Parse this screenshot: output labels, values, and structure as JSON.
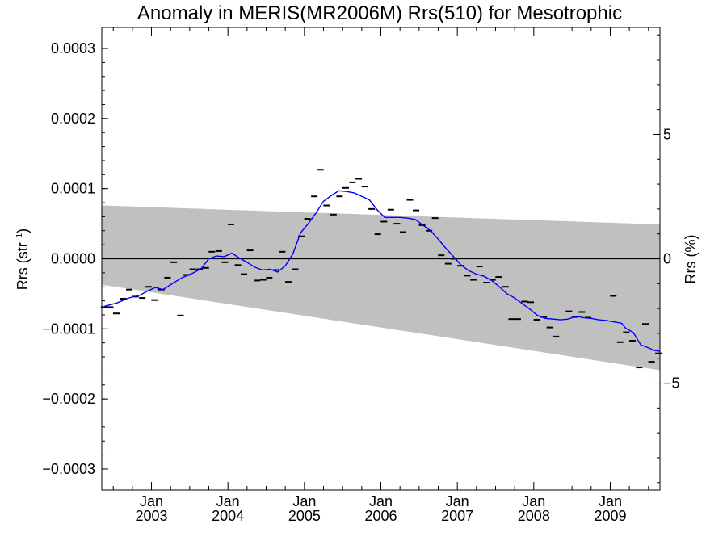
{
  "chart_data": {
    "type": "line",
    "title": "Anomaly in MERIS(MR2006M) Rrs(510) for Mesotrophic",
    "ylabel_main": "Rrs (str",
    "ylabel_sup": "−1",
    "ylabel_close": ")",
    "y2label": "Rrs (%)",
    "xlim": [
      2002.35,
      2009.65
    ],
    "ylim": [
      -0.00033,
      0.00033
    ],
    "y2lim": [
      -9.3,
      9.3
    ],
    "y_ticks": [
      {
        "value": 0.0003,
        "label": "0.0003"
      },
      {
        "value": 0.0002,
        "label": "0.0002"
      },
      {
        "value": 0.0001,
        "label": "0.0001"
      },
      {
        "value": 0.0,
        "label": "0.0000"
      },
      {
        "value": -0.0001,
        "label": "−0.0001"
      },
      {
        "value": -0.0002,
        "label": "−0.0002"
      },
      {
        "value": -0.0003,
        "label": "−0.0003"
      }
    ],
    "y2_ticks": [
      {
        "value": 5,
        "label": "5"
      },
      {
        "value": 0,
        "label": "0"
      },
      {
        "value": -5,
        "label": "−5"
      }
    ],
    "x_ticks": [
      {
        "value": 2003,
        "label1": "Jan",
        "label2": "2003"
      },
      {
        "value": 2004,
        "label1": "Jan",
        "label2": "2004"
      },
      {
        "value": 2005,
        "label1": "Jan",
        "label2": "2005"
      },
      {
        "value": 2006,
        "label1": "Jan",
        "label2": "2006"
      },
      {
        "value": 2007,
        "label1": "Jan",
        "label2": "2007"
      },
      {
        "value": 2008,
        "label1": "Jan",
        "label2": "2008"
      },
      {
        "value": 2009,
        "label1": "Jan",
        "label2": "2009"
      }
    ],
    "colors": {
      "band": "#c0c0c0",
      "line": "#0000ff",
      "points": "#000000",
      "zero_line": "#000000"
    },
    "band": {
      "upper": [
        [
          2002.35,
          7.6e-05
        ],
        [
          2009.65,
          4.9e-05
        ]
      ],
      "lower": [
        [
          2002.35,
          -3.7e-05
        ],
        [
          2009.65,
          -0.000159
        ]
      ]
    },
    "monthly_points": [
      [
        2002.38,
        -6.9e-05
      ],
      [
        2002.46,
        -6.9e-05
      ],
      [
        2002.54,
        -7.8e-05
      ],
      [
        2002.63,
        -5.7e-05
      ],
      [
        2002.71,
        -4.4e-05
      ],
      [
        2002.79,
        -5.4e-05
      ],
      [
        2002.88,
        -5.6e-05
      ],
      [
        2002.96,
        -4e-05
      ],
      [
        2003.04,
        -5.9e-05
      ],
      [
        2003.13,
        -4.4e-05
      ],
      [
        2003.21,
        -2.7e-05
      ],
      [
        2003.29,
        -5e-06
      ],
      [
        2003.38,
        -8.1e-05
      ],
      [
        2003.46,
        -2.3e-05
      ],
      [
        2003.54,
        -1.5e-05
      ],
      [
        2003.63,
        -1.5e-05
      ],
      [
        2003.71,
        -1.3e-05
      ],
      [
        2003.79,
        1e-05
      ],
      [
        2003.88,
        1.1e-05
      ],
      [
        2003.96,
        -5e-06
      ],
      [
        2004.04,
        4.9e-05
      ],
      [
        2004.13,
        -9e-06
      ],
      [
        2004.21,
        -2.2e-05
      ],
      [
        2004.29,
        1.2e-05
      ],
      [
        2004.38,
        -3.1e-05
      ],
      [
        2004.46,
        -3e-05
      ],
      [
        2004.54,
        -2.7e-05
      ],
      [
        2004.63,
        -1.6e-05
      ],
      [
        2004.71,
        1e-05
      ],
      [
        2004.79,
        -3.3e-05
      ],
      [
        2004.88,
        -1.5e-05
      ],
      [
        2004.96,
        3.2e-05
      ],
      [
        2005.04,
        5.7e-05
      ],
      [
        2005.13,
        8.9e-05
      ],
      [
        2005.21,
        0.000127
      ],
      [
        2005.29,
        7.6e-05
      ],
      [
        2005.38,
        6.3e-05
      ],
      [
        2005.46,
        8.9e-05
      ],
      [
        2005.54,
        0.000101
      ],
      [
        2005.63,
        0.000109
      ],
      [
        2005.71,
        0.000114
      ],
      [
        2005.79,
        0.000103
      ],
      [
        2005.88,
        7.1e-05
      ],
      [
        2005.96,
        3.5e-05
      ],
      [
        2006.04,
        5.3e-05
      ],
      [
        2006.13,
        7e-05
      ],
      [
        2006.21,
        5e-05
      ],
      [
        2006.29,
        3.8e-05
      ],
      [
        2006.38,
        8.4e-05
      ],
      [
        2006.46,
        6.9e-05
      ],
      [
        2006.54,
        4.8e-05
      ],
      [
        2006.63,
        4e-05
      ],
      [
        2006.71,
        5.8e-05
      ],
      [
        2006.79,
        5e-06
      ],
      [
        2006.88,
        -7e-06
      ],
      [
        2006.96,
        0.0
      ],
      [
        2007.04,
        -1e-05
      ],
      [
        2007.13,
        -2.4e-05
      ],
      [
        2007.21,
        -3e-05
      ],
      [
        2007.29,
        -1.1e-05
      ],
      [
        2007.38,
        -3.4e-05
      ],
      [
        2007.46,
        -3e-05
      ],
      [
        2007.54,
        -2.6e-05
      ],
      [
        2007.63,
        -4e-05
      ],
      [
        2007.71,
        -8.6e-05
      ],
      [
        2007.79,
        -8.6e-05
      ],
      [
        2007.88,
        -6.1e-05
      ],
      [
        2007.96,
        -6.2e-05
      ],
      [
        2008.04,
        -8.7e-05
      ],
      [
        2008.13,
        -8.3e-05
      ],
      [
        2008.21,
        -9.8e-05
      ],
      [
        2008.29,
        -0.000111
      ],
      [
        2008.46,
        -7.5e-05
      ],
      [
        2008.54,
        -8.3e-05
      ],
      [
        2008.63,
        -7.6e-05
      ],
      [
        2008.71,
        -8.4e-05
      ],
      [
        2009.04,
        -5.3e-05
      ],
      [
        2009.13,
        -0.000119
      ],
      [
        2009.21,
        -0.000105
      ],
      [
        2009.29,
        -0.000117
      ],
      [
        2009.38,
        -0.000155
      ],
      [
        2009.46,
        -9.3e-05
      ],
      [
        2009.54,
        -0.000147
      ],
      [
        2009.63,
        -0.000135
      ]
    ],
    "running_mean": [
      [
        2002.38,
        -6.8e-05
      ],
      [
        2002.55,
        -6.3e-05
      ],
      [
        2002.7,
        -5.6e-05
      ],
      [
        2002.85,
        -5.2e-05
      ],
      [
        2002.95,
        -4.6e-05
      ],
      [
        2003.05,
        -4.1e-05
      ],
      [
        2003.15,
        -4.4e-05
      ],
      [
        2003.25,
        -3.7e-05
      ],
      [
        2003.4,
        -2.7e-05
      ],
      [
        2003.55,
        -2e-05
      ],
      [
        2003.65,
        -1.4e-05
      ],
      [
        2003.75,
        0.0
      ],
      [
        2003.85,
        4e-06
      ],
      [
        2003.95,
        3e-06
      ],
      [
        2004.05,
        8e-06
      ],
      [
        2004.15,
        1e-06
      ],
      [
        2004.25,
        -5e-06
      ],
      [
        2004.35,
        -1.2e-05
      ],
      [
        2004.45,
        -1.6e-05
      ],
      [
        2004.55,
        -1.5e-05
      ],
      [
        2004.65,
        -1.9e-05
      ],
      [
        2004.75,
        -1e-05
      ],
      [
        2004.85,
        7e-06
      ],
      [
        2004.95,
        3.7e-05
      ],
      [
        2005.05,
        5e-05
      ],
      [
        2005.15,
        6.5e-05
      ],
      [
        2005.25,
        8.2e-05
      ],
      [
        2005.35,
        9e-05
      ],
      [
        2005.45,
        9.7e-05
      ],
      [
        2005.55,
        9.6e-05
      ],
      [
        2005.65,
        9.4e-05
      ],
      [
        2005.75,
        8.9e-05
      ],
      [
        2005.85,
        8.4e-05
      ],
      [
        2005.95,
        7e-05
      ],
      [
        2006.05,
        5.9e-05
      ],
      [
        2006.15,
        5.9e-05
      ],
      [
        2006.25,
        5.9e-05
      ],
      [
        2006.35,
        5.8e-05
      ],
      [
        2006.45,
        5.6e-05
      ],
      [
        2006.55,
        4.8e-05
      ],
      [
        2006.65,
        4e-05
      ],
      [
        2006.75,
        2.8e-05
      ],
      [
        2006.85,
        1.5e-05
      ],
      [
        2006.95,
        3e-06
      ],
      [
        2007.05,
        -9e-06
      ],
      [
        2007.15,
        -1.7e-05
      ],
      [
        2007.25,
        -2.2e-05
      ],
      [
        2007.35,
        -2.5e-05
      ],
      [
        2007.45,
        -3.1e-05
      ],
      [
        2007.55,
        -4e-05
      ],
      [
        2007.65,
        -5e-05
      ],
      [
        2007.75,
        -5.6e-05
      ],
      [
        2007.85,
        -6.4e-05
      ],
      [
        2007.95,
        -7.2e-05
      ],
      [
        2008.05,
        -8.1e-05
      ],
      [
        2008.15,
        -8.5e-05
      ],
      [
        2008.25,
        -8.6e-05
      ],
      [
        2008.35,
        -8.7e-05
      ],
      [
        2008.45,
        -8.6e-05
      ],
      [
        2008.55,
        -8.2e-05
      ],
      [
        2008.65,
        -8.4e-05
      ],
      [
        2008.75,
        -8.5e-05
      ],
      [
        2008.85,
        -8.7e-05
      ],
      [
        2008.95,
        -8.8e-05
      ],
      [
        2009.05,
        -9e-05
      ],
      [
        2009.15,
        -9.2e-05
      ],
      [
        2009.2,
        -9.9e-05
      ],
      [
        2009.3,
        -0.000105
      ],
      [
        2009.4,
        -0.000123
      ],
      [
        2009.5,
        -0.000127
      ],
      [
        2009.58,
        -0.000131
      ],
      [
        2009.65,
        -0.000132
      ]
    ]
  }
}
